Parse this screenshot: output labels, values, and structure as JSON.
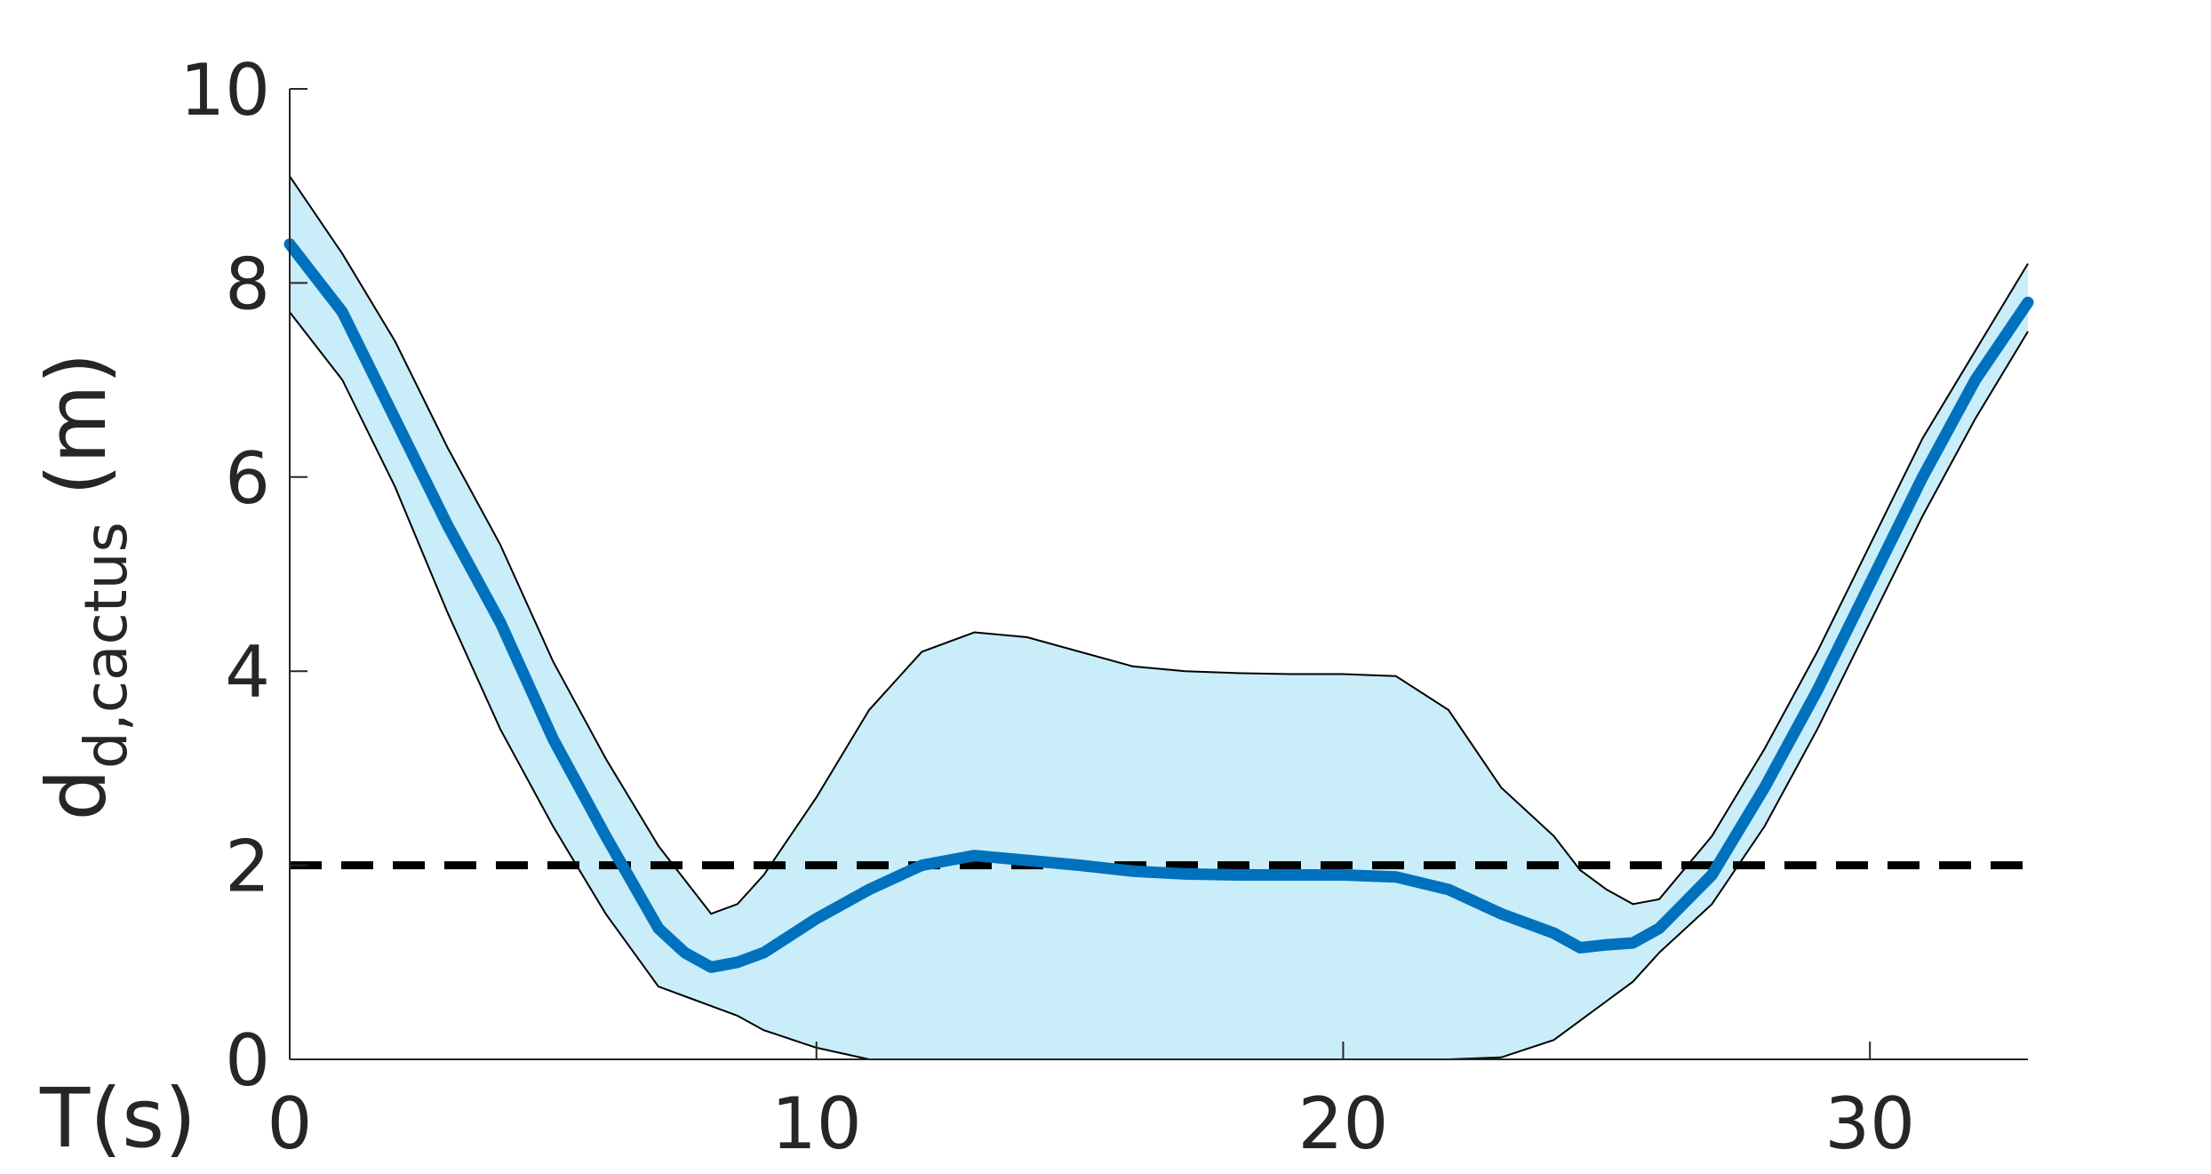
{
  "chart_data": {
    "type": "line",
    "x_unit_label": "T(s)",
    "ylabel_main": "d",
    "ylabel_sub": "d,cactus",
    "ylabel_unit": " (m)",
    "xlim": [
      0,
      33
    ],
    "ylim": [
      0,
      10
    ],
    "xticks": [
      0,
      10,
      20,
      30
    ],
    "yticks": [
      0,
      2,
      4,
      6,
      8,
      10
    ],
    "xtick_labels": [
      "0",
      "10",
      "20",
      "30"
    ],
    "ytick_labels": [
      "0",
      "2",
      "4",
      "6",
      "8",
      "10"
    ],
    "grid": false,
    "threshold": {
      "y": 2,
      "style": "dashed",
      "color": "#000000"
    },
    "colors": {
      "mean": "#0072BD",
      "band_fill": "#C9EDF9",
      "band_edge": "#000000",
      "text": "#262626"
    },
    "series": [
      {
        "role": "mean",
        "x": [
          0,
          1,
          2,
          3,
          4,
          5,
          6,
          7,
          7.5,
          8,
          8.5,
          9,
          10,
          11,
          12,
          13,
          14,
          15,
          16,
          17,
          18,
          19,
          20,
          21,
          22,
          23,
          24,
          24.5,
          25,
          25.5,
          26,
          27,
          28,
          29,
          30,
          31,
          32,
          33
        ],
        "y": [
          8.4,
          7.7,
          6.6,
          5.5,
          4.5,
          3.3,
          2.3,
          1.35,
          1.1,
          0.95,
          1.0,
          1.1,
          1.45,
          1.75,
          2.0,
          2.1,
          2.05,
          2.0,
          1.94,
          1.91,
          1.9,
          1.9,
          1.9,
          1.88,
          1.75,
          1.5,
          1.3,
          1.15,
          1.18,
          1.2,
          1.35,
          1.9,
          2.8,
          3.8,
          4.9,
          6.0,
          7.0,
          7.8
        ]
      },
      {
        "role": "upper",
        "x": [
          0,
          1,
          2,
          3,
          4,
          5,
          6,
          7,
          7.5,
          8,
          8.5,
          9,
          10,
          11,
          12,
          13,
          14,
          15,
          16,
          17,
          18,
          19,
          20,
          21,
          22,
          23,
          24,
          24.5,
          25,
          25.5,
          26,
          27,
          28,
          29,
          30,
          31,
          32,
          33
        ],
        "y": [
          9.1,
          8.3,
          7.4,
          6.3,
          5.3,
          4.1,
          3.1,
          2.2,
          1.85,
          1.5,
          1.6,
          1.9,
          2.7,
          3.6,
          4.2,
          4.4,
          4.35,
          4.2,
          4.05,
          4.0,
          3.98,
          3.97,
          3.97,
          3.95,
          3.6,
          2.8,
          2.3,
          1.95,
          1.75,
          1.6,
          1.65,
          2.3,
          3.2,
          4.2,
          5.3,
          6.4,
          7.3,
          8.2
        ]
      },
      {
        "role": "lower",
        "x": [
          0,
          1,
          2,
          3,
          4,
          5,
          6,
          7,
          7.5,
          8,
          8.5,
          9,
          10,
          11,
          12,
          13,
          14,
          15,
          16,
          17,
          18,
          19,
          20,
          21,
          22,
          23,
          24,
          24.5,
          25,
          25.5,
          26,
          27,
          28,
          29,
          30,
          31,
          32,
          33
        ],
        "y": [
          7.7,
          7.0,
          5.9,
          4.6,
          3.4,
          2.4,
          1.5,
          0.75,
          0.65,
          0.55,
          0.45,
          0.3,
          0.12,
          0,
          0,
          0,
          0,
          0,
          0,
          0,
          0,
          0,
          0,
          0,
          0,
          0.02,
          0.2,
          0.4,
          0.6,
          0.8,
          1.1,
          1.6,
          2.4,
          3.4,
          4.5,
          5.6,
          6.6,
          7.5
        ]
      }
    ]
  }
}
